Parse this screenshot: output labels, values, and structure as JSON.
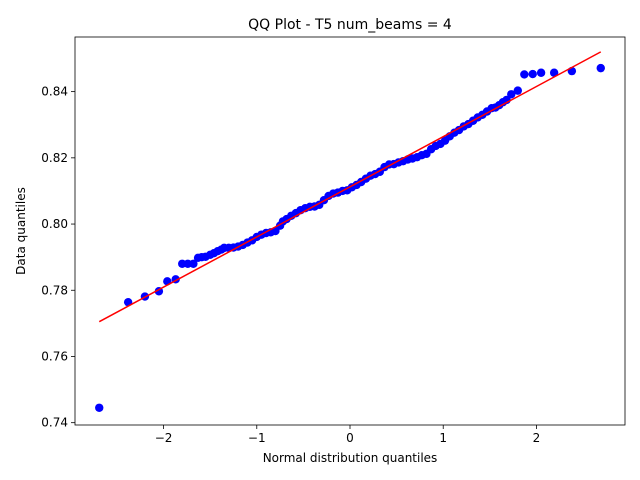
{
  "chart_data": {
    "type": "scatter",
    "title": "QQ Plot - T5 num_beams = 4",
    "xlabel": "Normal distribution quantiles",
    "ylabel": "Data quantiles",
    "xlim": [
      -2.95,
      2.95
    ],
    "ylim": [
      0.7393,
      0.8565
    ],
    "x_ticks": [
      -2,
      -1,
      0,
      1,
      2
    ],
    "x_tick_labels": [
      "−2",
      "−1",
      "0",
      "1",
      "2"
    ],
    "y_ticks": [
      0.74,
      0.76,
      0.78,
      0.8,
      0.82,
      0.84
    ],
    "y_tick_labels": [
      "0.74",
      "0.76",
      "0.78",
      "0.80",
      "0.82",
      "0.84"
    ],
    "grid": false,
    "series": [
      {
        "kind": "points",
        "color": "#0000ff",
        "points": [
          [
            -2.69,
            0.7445
          ],
          [
            -2.38,
            0.7764
          ],
          [
            -2.2,
            0.7781
          ],
          [
            -2.05,
            0.7797
          ],
          [
            -1.96,
            0.7827
          ],
          [
            -1.87,
            0.7833
          ],
          [
            -1.8,
            0.788
          ],
          [
            -1.74,
            0.788
          ],
          [
            -1.68,
            0.788
          ],
          [
            -1.63,
            0.7898
          ],
          [
            -1.59,
            0.79
          ],
          [
            -1.55,
            0.7901
          ],
          [
            -1.5,
            0.7907
          ],
          [
            -1.46,
            0.7912
          ],
          [
            -1.42,
            0.7918
          ],
          [
            -1.38,
            0.7923
          ],
          [
            -1.35,
            0.7928
          ],
          [
            -1.3,
            0.7928
          ],
          [
            -1.25,
            0.7929
          ],
          [
            -1.2,
            0.7932
          ],
          [
            -1.15,
            0.7937
          ],
          [
            -1.1,
            0.7944
          ],
          [
            -1.05,
            0.7951
          ],
          [
            -1.0,
            0.7961
          ],
          [
            -0.95,
            0.7968
          ],
          [
            -0.9,
            0.7973
          ],
          [
            -0.85,
            0.7975
          ],
          [
            -0.8,
            0.7979
          ],
          [
            -0.75,
            0.7995
          ],
          [
            -0.72,
            0.8008
          ],
          [
            -0.68,
            0.8015
          ],
          [
            -0.63,
            0.8025
          ],
          [
            -0.58,
            0.8033
          ],
          [
            -0.53,
            0.8042
          ],
          [
            -0.48,
            0.8048
          ],
          [
            -0.43,
            0.8052
          ],
          [
            -0.38,
            0.8053
          ],
          [
            -0.33,
            0.8058
          ],
          [
            -0.28,
            0.8072
          ],
          [
            -0.23,
            0.8085
          ],
          [
            -0.18,
            0.8092
          ],
          [
            -0.13,
            0.8095
          ],
          [
            -0.08,
            0.81
          ],
          [
            -0.03,
            0.8102
          ],
          [
            0.02,
            0.8111
          ],
          [
            0.07,
            0.8118
          ],
          [
            0.12,
            0.8127
          ],
          [
            0.17,
            0.8137
          ],
          [
            0.22,
            0.8146
          ],
          [
            0.27,
            0.8151
          ],
          [
            0.32,
            0.8158
          ],
          [
            0.37,
            0.8172
          ],
          [
            0.42,
            0.818
          ],
          [
            0.47,
            0.8181
          ],
          [
            0.52,
            0.8186
          ],
          [
            0.57,
            0.819
          ],
          [
            0.62,
            0.8195
          ],
          [
            0.67,
            0.8198
          ],
          [
            0.72,
            0.8202
          ],
          [
            0.77,
            0.8208
          ],
          [
            0.82,
            0.8212
          ],
          [
            0.87,
            0.8226
          ],
          [
            0.92,
            0.8236
          ],
          [
            0.97,
            0.8242
          ],
          [
            1.02,
            0.8252
          ],
          [
            1.07,
            0.8265
          ],
          [
            1.12,
            0.8276
          ],
          [
            1.17,
            0.8284
          ],
          [
            1.22,
            0.8295
          ],
          [
            1.27,
            0.8302
          ],
          [
            1.32,
            0.8312
          ],
          [
            1.37,
            0.8322
          ],
          [
            1.42,
            0.833
          ],
          [
            1.47,
            0.834
          ],
          [
            1.52,
            0.835
          ],
          [
            1.56,
            0.8352
          ],
          [
            1.6,
            0.8359
          ],
          [
            1.64,
            0.8368
          ],
          [
            1.68,
            0.8375
          ],
          [
            1.73,
            0.8392
          ],
          [
            1.8,
            0.8403
          ],
          [
            1.87,
            0.8452
          ],
          [
            1.96,
            0.8453
          ],
          [
            2.05,
            0.8457
          ],
          [
            2.19,
            0.8457
          ],
          [
            2.38,
            0.8462
          ],
          [
            2.69,
            0.8471
          ]
        ]
      },
      {
        "kind": "line",
        "color": "#ff0000",
        "points": [
          [
            -2.69,
            0.7705
          ],
          [
            2.69,
            0.852
          ]
        ]
      }
    ]
  }
}
